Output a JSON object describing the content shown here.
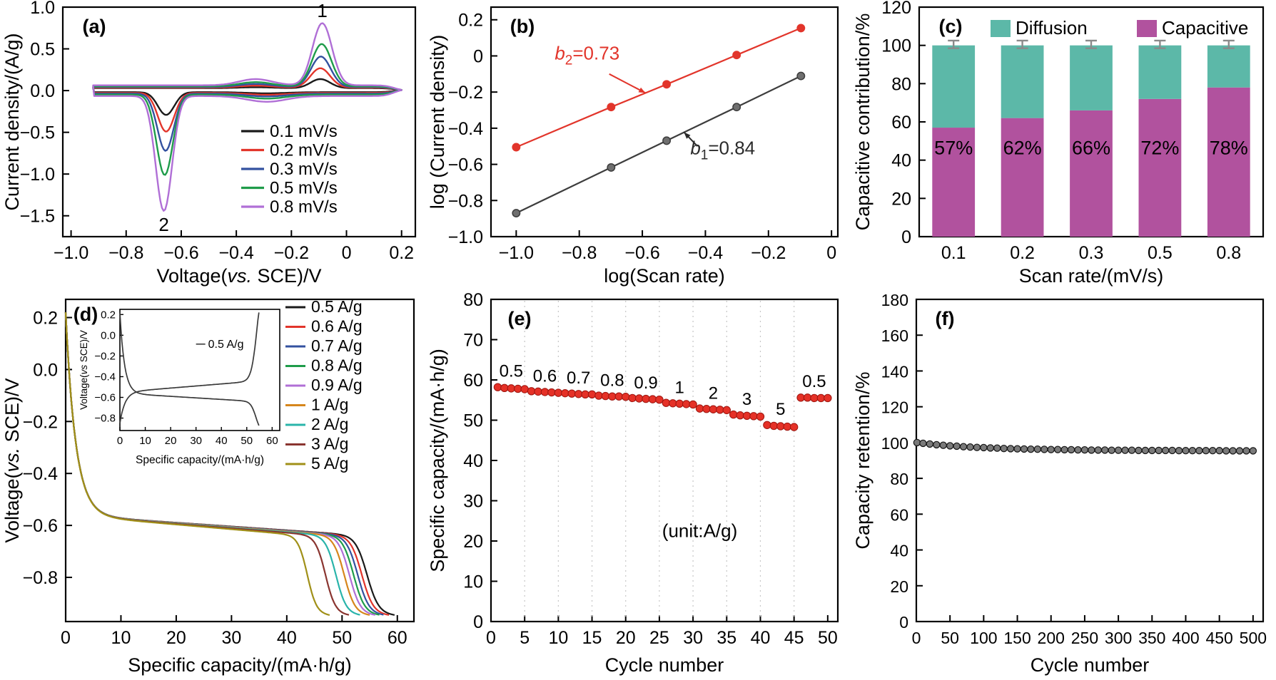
{
  "figure": {
    "background": "#ffffff",
    "panels_order": [
      "a",
      "b",
      "c",
      "d",
      "e",
      "f"
    ]
  },
  "chart_data": [
    {
      "id": "a",
      "type": "line",
      "tag": "(a)",
      "xlabel_segments": [
        {
          "t": "Voltage("
        },
        {
          "t": "vs.",
          "i": true
        },
        {
          "t": " SCE)/V"
        }
      ],
      "ylabel": "Current density/(A/g)",
      "xlim": [
        -1.03,
        0.25
      ],
      "ylim": [
        -1.75,
        1.0
      ],
      "xticks": [
        {
          "v": -1.0,
          "l": "−1.0"
        },
        {
          "v": -0.8,
          "l": "−0.8"
        },
        {
          "v": -0.6,
          "l": "−0.6"
        },
        {
          "v": -0.4,
          "l": "−0.4"
        },
        {
          "v": -0.2,
          "l": "−0.2"
        },
        {
          "v": 0,
          "l": "0"
        },
        {
          "v": 0.2,
          "l": "0.2"
        }
      ],
      "yticks": [
        {
          "v": -1.5,
          "l": "−1.5"
        },
        {
          "v": -1.0,
          "l": "−1.0"
        },
        {
          "v": -0.5,
          "l": "−0.5"
        },
        {
          "v": 0,
          "l": "0.0"
        },
        {
          "v": 0.5,
          "l": "0.5"
        },
        {
          "v": 1.0,
          "l": "1.0"
        }
      ],
      "series": [
        {
          "name": "0.1 mV/s",
          "color": "#1a1a1a",
          "anodic_peak_V": -0.095,
          "anodic_peak_A": 0.13,
          "cathodic_peak_V": -0.655,
          "cathodic_peak_A": -0.3
        },
        {
          "name": "0.2 mV/s",
          "color": "#e2352b",
          "anodic_peak_V": -0.095,
          "anodic_peak_A": 0.26,
          "cathodic_peak_V": -0.655,
          "cathodic_peak_A": -0.5
        },
        {
          "name": "0.3 mV/s",
          "color": "#33519f",
          "anodic_peak_V": -0.093,
          "anodic_peak_A": 0.4,
          "cathodic_peak_V": -0.657,
          "cathodic_peak_A": -0.73
        },
        {
          "name": "0.5 mV/s",
          "color": "#1f9c4a",
          "anodic_peak_V": -0.09,
          "anodic_peak_A": 0.55,
          "cathodic_peak_V": -0.66,
          "cathodic_peak_A": -1.02
        },
        {
          "name": "0.8 mV/s",
          "color": "#b06fd6",
          "anodic_peak_V": -0.088,
          "anodic_peak_A": 0.8,
          "cathodic_peak_V": -0.663,
          "cathodic_peak_A": -1.45
        }
      ],
      "peak_annotations": [
        {
          "text": "1",
          "x": -0.088,
          "y": 0.88
        },
        {
          "text": "2",
          "x": -0.663,
          "y": -1.68
        }
      ]
    },
    {
      "id": "b",
      "type": "scatter",
      "tag": "(b)",
      "xlabel": "log(Scan rate)",
      "ylabel": "log (Current density)",
      "xlim": [
        -1.08,
        0.02
      ],
      "ylim": [
        -1.0,
        0.27
      ],
      "xticks": [
        {
          "v": -1.0,
          "l": "−1.0"
        },
        {
          "v": -0.8,
          "l": "−0.8"
        },
        {
          "v": -0.6,
          "l": "−0.6"
        },
        {
          "v": -0.4,
          "l": "−0.4"
        },
        {
          "v": -0.2,
          "l": "−0.2"
        },
        {
          "v": 0,
          "l": "0"
        }
      ],
      "yticks": [
        {
          "v": 0.2,
          "l": "0.2"
        },
        {
          "v": 0,
          "l": "0"
        },
        {
          "v": -0.2,
          "l": "−0.2"
        },
        {
          "v": -0.4,
          "l": "−0.4"
        },
        {
          "v": -0.6,
          "l": "−0.6"
        },
        {
          "v": -0.8,
          "l": "−0.8"
        },
        {
          "v": -1.0,
          "l": "−1.0"
        }
      ],
      "series": [
        {
          "name": "peak 2 fit b2=0.73",
          "color": "#e2352b",
          "marker_fill": "#e2352b",
          "x": [
            -1.0,
            -0.699,
            -0.523,
            -0.301,
            -0.097
          ],
          "y": [
            -0.505,
            -0.283,
            -0.157,
            0.005,
            0.154
          ]
        },
        {
          "name": "peak 1 fit b1=0.84",
          "color": "#3d3d3d",
          "marker_fill": "#6f6f6f",
          "x": [
            -1.0,
            -0.699,
            -0.523,
            -0.301,
            -0.097
          ],
          "y": [
            -0.87,
            -0.617,
            -0.469,
            -0.283,
            -0.111
          ]
        }
      ],
      "annotations": [
        {
          "pre": "b",
          "sub": "2",
          "post": "=0.73",
          "color": "#e2352b",
          "text_x": -0.775,
          "text_y": -0.02,
          "arrow": [
            -0.705,
            -0.1,
            -0.59,
            -0.205
          ]
        },
        {
          "pre": "b",
          "sub": "1",
          "post": "=0.84",
          "color": "#2b2b2b",
          "text_x": -0.345,
          "text_y": -0.545,
          "arrow": [
            -0.425,
            -0.5,
            -0.468,
            -0.422
          ]
        }
      ]
    },
    {
      "id": "c",
      "type": "bar",
      "tag": "(c)",
      "xlabel": "Scan rate/(mV/s)",
      "ylabel": "Capacitive contribution/%",
      "categories": [
        "0.1",
        "0.2",
        "0.3",
        "0.5",
        "0.8"
      ],
      "ylim": [
        0,
        120
      ],
      "yticks": [
        {
          "v": 0,
          "l": "0"
        },
        {
          "v": 20,
          "l": "20"
        },
        {
          "v": 40,
          "l": "40"
        },
        {
          "v": 60,
          "l": "60"
        },
        {
          "v": 80,
          "l": "80"
        },
        {
          "v": 100,
          "l": "100"
        },
        {
          "v": 120,
          "l": "120"
        }
      ],
      "series": [
        {
          "name": "Capacitive",
          "color": "#b1529e",
          "values": [
            57,
            62,
            66,
            72,
            78
          ]
        },
        {
          "name": "Diffusion",
          "color": "#5cb8a8",
          "values": [
            43,
            38,
            34,
            28,
            22
          ]
        }
      ],
      "bar_labels": [
        "57%",
        "62%",
        "66%",
        "72%",
        "78%"
      ],
      "error_bars": {
        "top": 102.5,
        "bottom": 98.5,
        "color": "#8a8a8a"
      },
      "legend": [
        {
          "label": "Diffusion",
          "color": "#5cb8a8"
        },
        {
          "label": "Capacitive",
          "color": "#b1529e"
        }
      ]
    },
    {
      "id": "d",
      "type": "line",
      "tag": "(d)",
      "xlabel": "Specific capacity/(mA·h/g)",
      "ylabel_segments": [
        {
          "t": "Voltage("
        },
        {
          "t": "vs.",
          "i": true
        },
        {
          "t": " SCE)/V"
        }
      ],
      "xlim": [
        0,
        63
      ],
      "ylim": [
        -0.97,
        0.27
      ],
      "xticks": [
        {
          "v": 0,
          "l": "0"
        },
        {
          "v": 10,
          "l": "10"
        },
        {
          "v": 20,
          "l": "20"
        },
        {
          "v": 30,
          "l": "30"
        },
        {
          "v": 40,
          "l": "40"
        },
        {
          "v": 50,
          "l": "50"
        },
        {
          "v": 60,
          "l": "60"
        }
      ],
      "yticks": [
        {
          "v": 0.2,
          "l": "0.2"
        },
        {
          "v": 0,
          "l": "0.0"
        },
        {
          "v": -0.2,
          "l": "−0.2"
        },
        {
          "v": -0.4,
          "l": "−0.4"
        },
        {
          "v": -0.6,
          "l": "−0.6"
        },
        {
          "v": -0.8,
          "l": "−0.8"
        }
      ],
      "series": [
        {
          "name": "0.5 A/g",
          "color": "#1a1a1a",
          "capacity": 58.0
        },
        {
          "name": "0.6 A/g",
          "color": "#e2352b",
          "capacity": 57.0
        },
        {
          "name": "0.7 A/g",
          "color": "#33519f",
          "capacity": 56.2
        },
        {
          "name": "0.8 A/g",
          "color": "#1f9c4a",
          "capacity": 55.4
        },
        {
          "name": "0.9 A/g",
          "color": "#b06fd6",
          "capacity": 54.6
        },
        {
          "name": "1 A/g",
          "color": "#d6861c",
          "capacity": 53.6
        },
        {
          "name": "2 A/g",
          "color": "#2ab4aa",
          "capacity": 52.0
        },
        {
          "name": "3 A/g",
          "color": "#8a3530",
          "capacity": 50.0
        },
        {
          "name": "5 A/g",
          "color": "#a09018",
          "capacity": 46.5
        }
      ],
      "inset": {
        "xlabel": "Specific capacity/(mA·h/g)",
        "ylabel_segments": [
          {
            "t": "Voltage("
          },
          {
            "t": "vs",
            "i": true
          },
          {
            "t": " SCE)/V"
          }
        ],
        "xlim": [
          0,
          63
        ],
        "ylim": [
          -0.92,
          0.25
        ],
        "xticks": [
          {
            "v": 0,
            "l": "0"
          },
          {
            "v": 10,
            "l": "10"
          },
          {
            "v": 20,
            "l": "20"
          },
          {
            "v": 30,
            "l": "30"
          },
          {
            "v": 40,
            "l": "40"
          },
          {
            "v": 50,
            "l": "50"
          },
          {
            "v": 60,
            "l": "60"
          }
        ],
        "yticks": [
          {
            "v": 0.2,
            "l": "0.2"
          },
          {
            "v": 0,
            "l": "0.0"
          },
          {
            "v": -0.2,
            "l": "−0.2"
          },
          {
            "v": -0.4,
            "l": "−0.4"
          },
          {
            "v": -0.6,
            "l": "−0.6"
          },
          {
            "v": -0.8,
            "l": "−0.8"
          }
        ],
        "label": "0.5 A/g",
        "discharge_capacity": 57.0,
        "charge_capacity": 56.0,
        "color": "#3a3a3a"
      }
    },
    {
      "id": "e",
      "type": "scatter",
      "tag": "(e)",
      "xlabel": "Cycle number",
      "ylabel": "Specific capacity/(mA·h/g)",
      "xlim": [
        0,
        51.5
      ],
      "ylim": [
        0,
        80
      ],
      "xticks": [
        {
          "v": 0,
          "l": "0"
        },
        {
          "v": 5,
          "l": "5"
        },
        {
          "v": 10,
          "l": "10"
        },
        {
          "v": 15,
          "l": "15"
        },
        {
          "v": 20,
          "l": "20"
        },
        {
          "v": 25,
          "l": "25"
        },
        {
          "v": 30,
          "l": "30"
        },
        {
          "v": 35,
          "l": "35"
        },
        {
          "v": 40,
          "l": "40"
        },
        {
          "v": 45,
          "l": "45"
        },
        {
          "v": 50,
          "l": "50"
        }
      ],
      "yticks": [
        {
          "v": 0,
          "l": "0"
        },
        {
          "v": 10,
          "l": "10"
        },
        {
          "v": 20,
          "l": "20"
        },
        {
          "v": 30,
          "l": "30"
        },
        {
          "v": 40,
          "l": "40"
        },
        {
          "v": 50,
          "l": "50"
        },
        {
          "v": 60,
          "l": "60"
        },
        {
          "v": 70,
          "l": "70"
        },
        {
          "v": 80,
          "l": "80"
        }
      ],
      "marker_color": "#e53127",
      "marker_edge": "#9e150f",
      "gridlines_x": [
        5,
        10,
        15,
        20,
        25,
        30,
        35,
        40,
        45
      ],
      "annotation": {
        "text": "(unit:A/g)",
        "x": 31,
        "y": 21
      },
      "groups": [
        {
          "rate": "0.5",
          "start_cycle": 1,
          "values": [
            58.2,
            58.0,
            57.9,
            57.8,
            57.7
          ],
          "label_x": 3,
          "label_y": 60.8
        },
        {
          "rate": "0.6",
          "start_cycle": 6,
          "values": [
            57.2,
            57.1,
            57.0,
            56.9,
            56.8
          ],
          "label_x": 8,
          "label_y": 59.6
        },
        {
          "rate": "0.7",
          "start_cycle": 11,
          "values": [
            56.7,
            56.6,
            56.5,
            56.4,
            56.4
          ],
          "label_x": 13,
          "label_y": 59.1
        },
        {
          "rate": "0.8",
          "start_cycle": 16,
          "values": [
            56.1,
            56.0,
            55.9,
            55.9,
            55.8
          ],
          "label_x": 18,
          "label_y": 58.5
        },
        {
          "rate": "0.9",
          "start_cycle": 21,
          "values": [
            55.5,
            55.4,
            55.3,
            55.2,
            55.1
          ],
          "label_x": 23,
          "label_y": 57.9
        },
        {
          "rate": "1",
          "start_cycle": 26,
          "values": [
            54.3,
            54.2,
            54.1,
            54.0,
            53.9
          ],
          "label_x": 28,
          "label_y": 56.7
        },
        {
          "rate": "2",
          "start_cycle": 31,
          "values": [
            52.9,
            52.8,
            52.7,
            52.6,
            52.5
          ],
          "label_x": 33,
          "label_y": 55.3
        },
        {
          "rate": "3",
          "start_cycle": 36,
          "values": [
            51.4,
            51.2,
            51.1,
            51.0,
            50.9
          ],
          "label_x": 38,
          "label_y": 53.8
        },
        {
          "rate": "5",
          "start_cycle": 41,
          "values": [
            48.8,
            48.6,
            48.5,
            48.4,
            48.3
          ],
          "label_x": 43,
          "label_y": 51.3
        },
        {
          "rate": "0.5",
          "start_cycle": 46,
          "values": [
            55.6,
            55.6,
            55.5,
            55.5,
            55.5
          ],
          "label_x": 48,
          "label_y": 58.2
        }
      ]
    },
    {
      "id": "f",
      "type": "scatter",
      "tag": "(f)",
      "xlabel": "Cycle number",
      "ylabel": "Capacity retention/%",
      "xlim": [
        0,
        515
      ],
      "ylim": [
        0,
        180
      ],
      "xticks": [
        {
          "v": 0,
          "l": "0"
        },
        {
          "v": 50,
          "l": "50"
        },
        {
          "v": 100,
          "l": "100"
        },
        {
          "v": 150,
          "l": "150"
        },
        {
          "v": 200,
          "l": "200"
        },
        {
          "v": 250,
          "l": "250"
        },
        {
          "v": 300,
          "l": "300"
        },
        {
          "v": 350,
          "l": "350"
        },
        {
          "v": 400,
          "l": "400"
        },
        {
          "v": 450,
          "l": "450"
        },
        {
          "v": 500,
          "l": "500"
        }
      ],
      "yticks": [
        {
          "v": 0,
          "l": "0"
        },
        {
          "v": 20,
          "l": "20"
        },
        {
          "v": 40,
          "l": "40"
        },
        {
          "v": 60,
          "l": "60"
        },
        {
          "v": 80,
          "l": "80"
        },
        {
          "v": 100,
          "l": "100"
        },
        {
          "v": 120,
          "l": "120"
        },
        {
          "v": 140,
          "l": "140"
        },
        {
          "v": 160,
          "l": "160"
        },
        {
          "v": 180,
          "l": "180"
        }
      ],
      "marker_color": "#7a7a7a",
      "marker_edge": "#141414",
      "x": [
        1,
        10,
        20,
        30,
        40,
        50,
        60,
        70,
        80,
        90,
        100,
        110,
        120,
        130,
        140,
        150,
        160,
        170,
        180,
        190,
        200,
        210,
        220,
        230,
        240,
        250,
        260,
        270,
        280,
        290,
        300,
        310,
        320,
        330,
        340,
        350,
        360,
        370,
        380,
        390,
        400,
        410,
        420,
        430,
        440,
        450,
        460,
        470,
        480,
        490,
        500
      ],
      "retention": [
        100.0,
        99.6,
        99.2,
        98.8,
        98.5,
        98.2,
        98.0,
        97.7,
        97.5,
        97.3,
        97.2,
        97.0,
        96.9,
        96.7,
        96.6,
        96.5,
        96.4,
        96.3,
        96.3,
        96.2,
        96.1,
        96.1,
        96.0,
        96.0,
        95.9,
        95.9,
        95.8,
        95.8,
        95.8,
        95.7,
        95.7,
        95.7,
        95.7,
        95.6,
        95.6,
        95.6,
        95.6,
        95.6,
        95.6,
        95.5,
        95.5,
        95.5,
        95.5,
        95.5,
        95.5,
        95.5,
        95.4,
        95.4,
        95.4,
        95.4,
        95.4
      ]
    }
  ]
}
